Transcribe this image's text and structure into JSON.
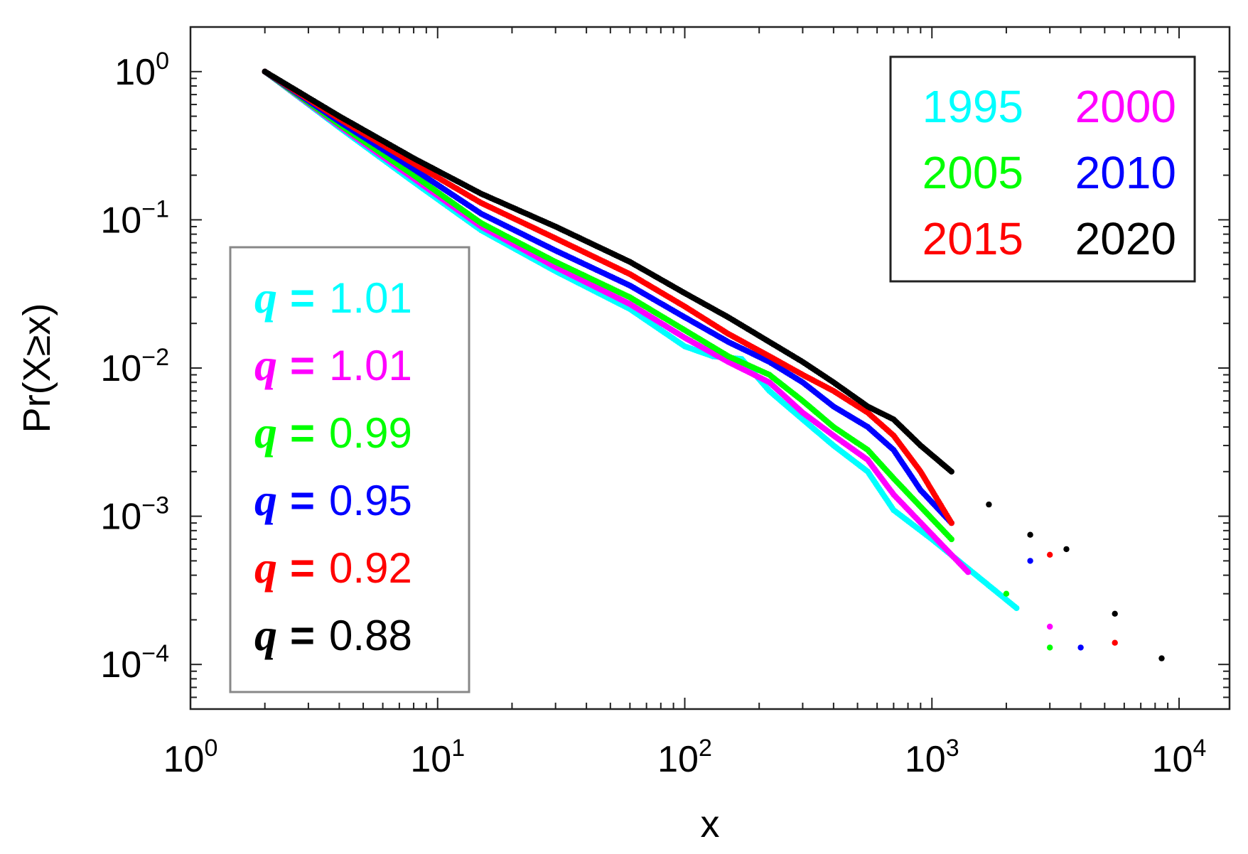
{
  "chart_data": {
    "type": "scatter",
    "title": "",
    "xlabel": "x",
    "ylabel": "Pr(X≥x)",
    "xscale": "log",
    "yscale": "log",
    "xlim": [
      1,
      16000
    ],
    "ylim": [
      5e-05,
      2.0
    ],
    "x_ticks": [
      {
        "value": 1,
        "base": "10",
        "exp": "0"
      },
      {
        "value": 10,
        "base": "10",
        "exp": "1"
      },
      {
        "value": 100,
        "base": "10",
        "exp": "2"
      },
      {
        "value": 1000,
        "base": "10",
        "exp": "3"
      },
      {
        "value": 10000,
        "base": "10",
        "exp": "4"
      }
    ],
    "y_ticks": [
      {
        "value": 1,
        "base": "10",
        "exp": "0"
      },
      {
        "value": 0.1,
        "base": "10",
        "exp": "−1"
      },
      {
        "value": 0.01,
        "base": "10",
        "exp": "−2"
      },
      {
        "value": 0.001,
        "base": "10",
        "exp": "−3"
      },
      {
        "value": 0.0001,
        "base": "10",
        "exp": "−4"
      }
    ],
    "legend_years_position": "top-right",
    "legend_q_position": "left",
    "series": [
      {
        "name": "1995",
        "color": "#00ffff",
        "q_label": "q",
        "q_eq": "=",
        "q_value": "1.01",
        "points": [
          [
            2,
            1.0
          ],
          [
            4,
            0.42
          ],
          [
            8,
            0.18
          ],
          [
            15,
            0.085
          ],
          [
            30,
            0.045
          ],
          [
            60,
            0.025
          ],
          [
            100,
            0.014
          ],
          [
            130,
            0.012
          ],
          [
            170,
            0.0115
          ],
          [
            220,
            0.007
          ],
          [
            300,
            0.0045
          ],
          [
            400,
            0.003
          ],
          [
            550,
            0.002
          ],
          [
            700,
            0.0011
          ],
          [
            1000,
            0.0007
          ],
          [
            2200,
            0.00024
          ]
        ]
      },
      {
        "name": "2000",
        "color": "#ff00ff",
        "q_label": "q",
        "q_eq": "=",
        "q_value": "1.01",
        "points": [
          [
            2,
            1.0
          ],
          [
            4,
            0.43
          ],
          [
            8,
            0.19
          ],
          [
            15,
            0.09
          ],
          [
            30,
            0.048
          ],
          [
            60,
            0.027
          ],
          [
            100,
            0.016
          ],
          [
            150,
            0.011
          ],
          [
            220,
            0.008
          ],
          [
            300,
            0.005
          ],
          [
            400,
            0.0035
          ],
          [
            550,
            0.0024
          ],
          [
            700,
            0.0014
          ],
          [
            1400,
            0.00042
          ],
          [
            3000,
            0.00018
          ]
        ]
      },
      {
        "name": "2005",
        "color": "#00ff00",
        "q_label": "q",
        "q_eq": "=",
        "q_value": "0.99",
        "points": [
          [
            2,
            1.0
          ],
          [
            4,
            0.44
          ],
          [
            8,
            0.2
          ],
          [
            15,
            0.095
          ],
          [
            30,
            0.052
          ],
          [
            60,
            0.03
          ],
          [
            100,
            0.018
          ],
          [
            150,
            0.012
          ],
          [
            220,
            0.009
          ],
          [
            300,
            0.006
          ],
          [
            400,
            0.004
          ],
          [
            550,
            0.0028
          ],
          [
            700,
            0.0018
          ],
          [
            1200,
            0.0007
          ],
          [
            2000,
            0.0003
          ],
          [
            3000,
            0.00013
          ]
        ]
      },
      {
        "name": "2010",
        "color": "#0000ff",
        "q_label": "q",
        "q_eq": "=",
        "q_value": "0.95",
        "points": [
          [
            2,
            1.0
          ],
          [
            4,
            0.46
          ],
          [
            8,
            0.22
          ],
          [
            15,
            0.11
          ],
          [
            30,
            0.062
          ],
          [
            60,
            0.036
          ],
          [
            100,
            0.022
          ],
          [
            150,
            0.015
          ],
          [
            220,
            0.011
          ],
          [
            300,
            0.008
          ],
          [
            400,
            0.0055
          ],
          [
            550,
            0.004
          ],
          [
            700,
            0.0028
          ],
          [
            900,
            0.0015
          ],
          [
            1200,
            0.0009
          ],
          [
            2500,
            0.0005
          ],
          [
            4000,
            0.00013
          ]
        ]
      },
      {
        "name": "2015",
        "color": "#ff0000",
        "q_label": "q",
        "q_eq": "=",
        "q_value": "0.92",
        "points": [
          [
            2,
            1.0
          ],
          [
            4,
            0.48
          ],
          [
            8,
            0.24
          ],
          [
            15,
            0.13
          ],
          [
            30,
            0.075
          ],
          [
            60,
            0.043
          ],
          [
            100,
            0.026
          ],
          [
            150,
            0.017
          ],
          [
            220,
            0.012
          ],
          [
            300,
            0.009
          ],
          [
            400,
            0.007
          ],
          [
            550,
            0.005
          ],
          [
            700,
            0.0035
          ],
          [
            900,
            0.002
          ],
          [
            1200,
            0.0009
          ],
          [
            3000,
            0.00055
          ],
          [
            5500,
            0.00014
          ]
        ]
      },
      {
        "name": "2020",
        "color": "#000000",
        "q_label": "q",
        "q_eq": "=",
        "q_value": "0.88",
        "points": [
          [
            2,
            1.0
          ],
          [
            4,
            0.5
          ],
          [
            8,
            0.26
          ],
          [
            15,
            0.15
          ],
          [
            30,
            0.09
          ],
          [
            60,
            0.052
          ],
          [
            100,
            0.032
          ],
          [
            150,
            0.022
          ],
          [
            220,
            0.015
          ],
          [
            300,
            0.011
          ],
          [
            400,
            0.008
          ],
          [
            550,
            0.0055
          ],
          [
            700,
            0.0045
          ],
          [
            900,
            0.003
          ],
          [
            1200,
            0.002
          ],
          [
            1700,
            0.0012
          ],
          [
            2500,
            0.00075
          ],
          [
            3500,
            0.0006
          ],
          [
            5500,
            0.00022
          ],
          [
            8500,
            0.00011
          ]
        ]
      }
    ]
  }
}
